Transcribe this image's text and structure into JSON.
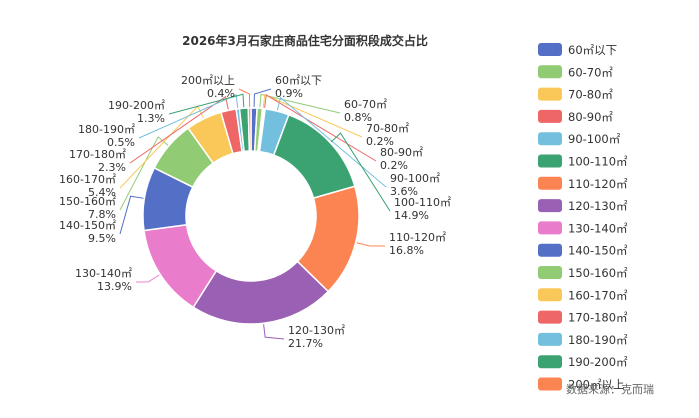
{
  "chart_data": {
    "type": "pie",
    "variant": "donut",
    "title": "2026年3月石家庄商品住宅分面积段成交占比",
    "source": "数据来源：克而瑞",
    "legend_placement": "right",
    "categories": [
      "60㎡以下",
      "60-70㎡",
      "70-80㎡",
      "80-90㎡",
      "90-100㎡",
      "100-110㎡",
      "110-120㎡",
      "120-130㎡",
      "130-140㎡",
      "140-150㎡",
      "150-160㎡",
      "160-170㎡",
      "170-180㎡",
      "180-190㎡",
      "190-200㎡",
      "200㎡以上"
    ],
    "values": [
      0.9,
      0.8,
      0.2,
      0.2,
      3.6,
      14.9,
      16.8,
      21.7,
      13.9,
      9.5,
      7.8,
      5.4,
      2.3,
      0.5,
      1.3,
      0.4
    ],
    "value_labels": [
      "0.9%",
      "0.8%",
      "0.2%",
      "0.2%",
      "3.6%",
      "14.9%",
      "16.8%",
      "21.7%",
      "13.9%",
      "9.5%",
      "7.8%",
      "5.4%",
      "2.3%",
      "0.5%",
      "1.3%",
      "0.4%"
    ],
    "colors": [
      "#5470c6",
      "#91cc75",
      "#fac858",
      "#ee6666",
      "#73c0de",
      "#3ba272",
      "#fc8452",
      "#9a60b4",
      "#ea7ccc",
      "#5470c6",
      "#91cc75",
      "#fac858",
      "#ee6666",
      "#73c0de",
      "#3ba272",
      "#fc8452"
    ]
  }
}
